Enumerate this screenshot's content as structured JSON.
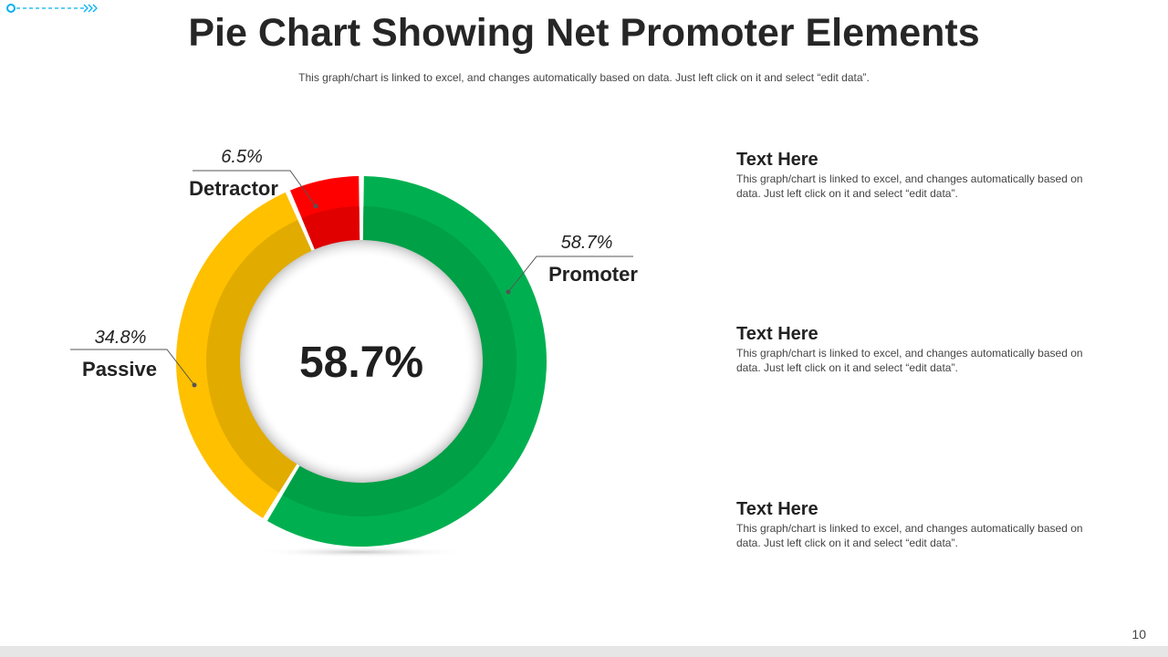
{
  "slide": {
    "title": "Pie Chart Showing Net Promoter Elements",
    "subtitle": "This graph/chart is linked to excel, and changes automatically based on data. Just left click on it and select “edit data”.",
    "page_number": "10"
  },
  "chart_data": {
    "type": "pie",
    "style": "donut",
    "center_label": "58.7%",
    "slices": [
      {
        "label": "Promoter",
        "value": 58.7,
        "value_label": "58.7%",
        "color": "#00b050",
        "inner_color": "#00a046"
      },
      {
        "label": "Passive",
        "value": 34.8,
        "value_label": "34.8%",
        "color": "#ffc000",
        "inner_color": "#e2ab00"
      },
      {
        "label": "Detractor",
        "value": 6.5,
        "value_label": "6.5%",
        "color": "#ff0000",
        "inner_color": "#e00000"
      }
    ]
  },
  "text_items": [
    {
      "heading": "Text Here",
      "body": "This graph/chart is linked to excel, and changes automatically based on data. Just left click on it and select “edit data”."
    },
    {
      "heading": "Text Here",
      "body": "This graph/chart is linked to excel, and changes automatically based on data. Just left click on it and select “edit data”."
    },
    {
      "heading": "Text Here",
      "body": "This graph/chart is linked to excel, and changes automatically based on data. Just left click on it and select “edit data”."
    }
  ],
  "colors": {
    "accent": "#00b0f0",
    "title": "#262626"
  }
}
